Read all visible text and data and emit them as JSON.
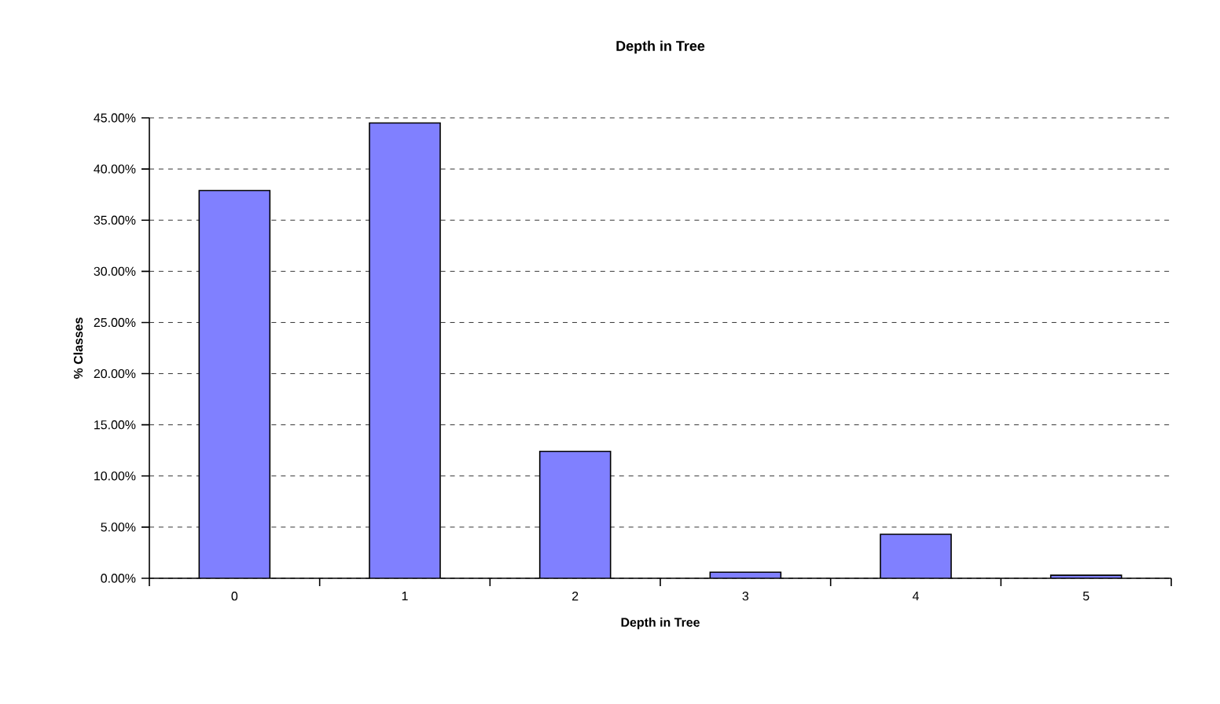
{
  "chart_data": {
    "type": "bar",
    "title": "Depth in Tree",
    "xlabel": "Depth in Tree",
    "ylabel": "% Classes",
    "categories": [
      "0",
      "1",
      "2",
      "3",
      "4",
      "5"
    ],
    "values": [
      37.9,
      44.5,
      12.4,
      0.6,
      4.3,
      0.3
    ],
    "color": "#8080ff",
    "ylim": [
      0,
      45
    ],
    "yticks": [
      {
        "value": 0,
        "label": "0.00%"
      },
      {
        "value": 5,
        "label": "5.00%"
      },
      {
        "value": 10,
        "label": "10.00%"
      },
      {
        "value": 15,
        "label": "15.00%"
      },
      {
        "value": 20,
        "label": "20.00%"
      },
      {
        "value": 25,
        "label": "25.00%"
      },
      {
        "value": 30,
        "label": "30.00%"
      },
      {
        "value": 35,
        "label": "35.00%"
      },
      {
        "value": 40,
        "label": "40.00%"
      },
      {
        "value": 45,
        "label": "45.00%"
      }
    ],
    "grid": "y"
  }
}
